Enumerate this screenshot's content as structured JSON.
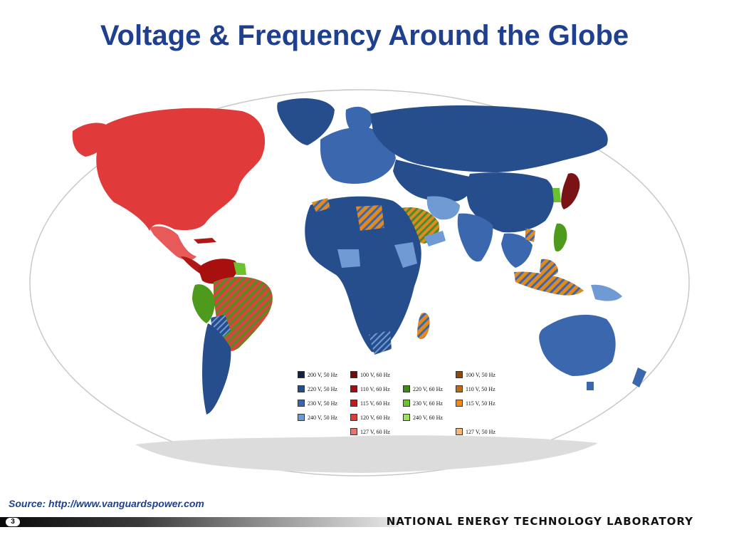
{
  "slide": {
    "title": "Voltage & Frequency Around the Globe",
    "source": "Source:  http://www.vanguardspower.com",
    "page_number": "3",
    "organization": "NATIONAL ENERGY TECHNOLOGY LABORATORY"
  },
  "map": {
    "projection": "world map (Robinson-style oval)",
    "ocean_color": "#ffffff",
    "antarctica_color": "#dcdcdc",
    "regions": [
      {
        "name": "North America (US, Canada)",
        "standard": "120V, 60Hz",
        "color": "#e03a3a"
      },
      {
        "name": "Mexico",
        "standard": "127V, 60Hz",
        "color": "#e85a5a"
      },
      {
        "name": "Central America & Caribbean",
        "standard": "110V, 60Hz",
        "color": "#b01818"
      },
      {
        "name": "Colombia / Venezuela",
        "standard": "110V, 60Hz",
        "color": "#a81010"
      },
      {
        "name": "Brazil",
        "standard": "127V/220V, 60Hz",
        "color": "#e04040",
        "pattern": "hatched"
      },
      {
        "name": "Peru / Ecuador",
        "standard": "220V, 60Hz",
        "color": "#4e9a1c"
      },
      {
        "name": "Southern South America",
        "standard": "220V, 50Hz",
        "color": "#274e8c"
      },
      {
        "name": "Greenland",
        "standard": "220V, 50Hz",
        "color": "#274e8c"
      },
      {
        "name": "Europe",
        "standard": "230V, 50Hz",
        "color": "#3a67ad"
      },
      {
        "name": "Russia & Central Asia",
        "standard": "220V, 50Hz",
        "color": "#274e8c"
      },
      {
        "name": "China",
        "standard": "220V, 50Hz",
        "color": "#274e8c"
      },
      {
        "name": "India",
        "standard": "230V, 50Hz",
        "color": "#3a67ad"
      },
      {
        "name": "Africa",
        "standard": "220V/230V, 50Hz",
        "color": "#274e8c"
      },
      {
        "name": "Saudi Arabia",
        "standard": "127V/220V, 60Hz",
        "color": "#e08a20",
        "pattern": "hatched"
      },
      {
        "name": "Japan",
        "standard": "100V, 50/60Hz",
        "color": "#7a1414"
      },
      {
        "name": "Philippines",
        "standard": "220V, 60Hz",
        "color": "#4e9a1c"
      },
      {
        "name": "Indonesia",
        "standard": "127V/230V, 50Hz",
        "color": "#e0a040",
        "pattern": "hatched"
      },
      {
        "name": "Australia",
        "standard": "240V, 50Hz",
        "color": "#3a67ad"
      }
    ]
  },
  "legend": {
    "items": [
      {
        "label": "200 V, 50 Hz",
        "color": "#0f2244"
      },
      {
        "label": "220 V, 50 Hz",
        "color": "#274e8c"
      },
      {
        "label": "230 V, 50 Hz",
        "color": "#3a67ad"
      },
      {
        "label": "240 V, 50 Hz",
        "color": "#6f9ad4"
      },
      {
        "label": "100 V, 60 Hz",
        "color": "#6e0b0b"
      },
      {
        "label": "110 V, 60 Hz",
        "color": "#a01010"
      },
      {
        "label": "115 V, 60 Hz",
        "color": "#c41a1a"
      },
      {
        "label": "120 V, 60 Hz",
        "color": "#e03a3a"
      },
      {
        "label": "127 V, 60 Hz",
        "color": "#f07070"
      },
      {
        "label": "220 V, 60 Hz",
        "color": "#3e8a14"
      },
      {
        "label": "230 V, 60 Hz",
        "color": "#6cc22c"
      },
      {
        "label": "240 V, 60 Hz",
        "color": "#9ee05a"
      },
      {
        "label": "100 V, 50 Hz",
        "color": "#8a4a10"
      },
      {
        "label": "110 V, 50 Hz",
        "color": "#c06a14"
      },
      {
        "label": "115 V, 50 Hz",
        "color": "#f08a14"
      },
      {
        "label": "127 V, 50 Hz",
        "color": "#f4b870"
      }
    ]
  }
}
